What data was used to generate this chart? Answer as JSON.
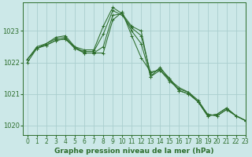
{
  "title": "Graphe pression niveau de la mer (hPa)",
  "background_color": "#cce8e8",
  "grid_color": "#aacece",
  "line_color": "#2d6e2d",
  "xlim": [
    -0.5,
    23
  ],
  "ylim": [
    1019.7,
    1023.9
  ],
  "yticks": [
    1020,
    1021,
    1022,
    1023
  ],
  "xticks": [
    0,
    1,
    2,
    3,
    4,
    5,
    6,
    7,
    8,
    9,
    10,
    11,
    12,
    13,
    14,
    15,
    16,
    17,
    18,
    19,
    20,
    21,
    22,
    23
  ],
  "series": [
    [
      1022.0,
      1022.45,
      1022.55,
      1022.7,
      1022.75,
      1022.5,
      1022.3,
      1022.3,
      1022.3,
      1023.35,
      1023.6,
      1022.85,
      1022.15,
      1021.7,
      1021.75,
      1021.45,
      1021.2,
      1021.05,
      1020.8,
      1020.35,
      1020.3,
      1020.5,
      1020.3,
      1020.15
    ],
    [
      1022.1,
      1022.45,
      1022.55,
      1022.7,
      1022.75,
      1022.45,
      1022.3,
      1022.3,
      1022.5,
      1023.5,
      1023.55,
      1023.0,
      1022.6,
      1021.55,
      1021.75,
      1021.4,
      1021.15,
      1021.05,
      1020.75,
      1020.35,
      1020.3,
      1020.5,
      1020.3,
      1020.15
    ],
    [
      1022.1,
      1022.45,
      1022.6,
      1022.75,
      1022.8,
      1022.45,
      1022.35,
      1022.35,
      1022.9,
      1023.65,
      1023.5,
      1023.1,
      1022.85,
      1021.65,
      1021.8,
      1021.5,
      1021.1,
      1021.0,
      1020.75,
      1020.3,
      1020.35,
      1020.55,
      1020.3,
      1020.15
    ],
    [
      1022.1,
      1022.5,
      1022.6,
      1022.8,
      1022.85,
      1022.5,
      1022.4,
      1022.4,
      1023.15,
      1023.75,
      1023.55,
      1023.15,
      1023.0,
      1021.55,
      1021.85,
      1021.45,
      1021.1,
      1021.0,
      1020.75,
      1020.3,
      1020.35,
      1020.55,
      1020.3,
      1020.15
    ]
  ]
}
